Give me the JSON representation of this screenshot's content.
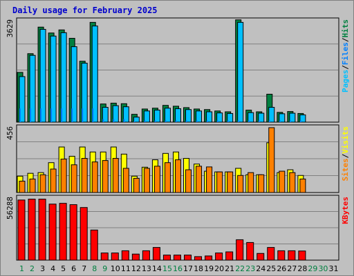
{
  "title": "Daily usage for February 2025",
  "colors": {
    "background": "#c0c0c0",
    "panel": "#c0c0c0",
    "gridline": "#808080",
    "hits": "#008040",
    "files": "#00c0ff",
    "pages": "#0080ff",
    "visits": "#ffff00",
    "sites": "#ff8000",
    "kbytes": "#ff0000",
    "weekday_label": "#008040",
    "weekend_label": "#000000"
  },
  "chart_data": [
    {
      "type": "bar",
      "panel": "top",
      "ymax_label": "3629",
      "ylim": [
        0,
        3629
      ],
      "legend_placement": "right",
      "legend": [
        "Pages",
        "Files",
        "Hits"
      ],
      "categories": [
        "1",
        "2",
        "3",
        "4",
        "5",
        "6",
        "7",
        "8",
        "9",
        "10",
        "11",
        "12",
        "13",
        "14",
        "15",
        "16",
        "17",
        "18",
        "19",
        "20",
        "21",
        "22",
        "23",
        "24",
        "25",
        "26",
        "27",
        "28",
        "29",
        "30",
        "31"
      ],
      "series": [
        {
          "name": "Hits",
          "values": [
            1780,
            2450,
            3400,
            3190,
            3300,
            3000,
            2180,
            3570,
            650,
            680,
            660,
            280,
            470,
            500,
            600,
            570,
            520,
            470,
            450,
            400,
            370,
            3660,
            430,
            370,
            1000,
            350,
            380,
            310,
            null,
            null,
            null
          ]
        },
        {
          "name": "Files",
          "values": [
            1630,
            2390,
            3320,
            3080,
            3200,
            2700,
            2110,
            3440,
            530,
            590,
            550,
            180,
            400,
            430,
            500,
            480,
            450,
            400,
            370,
            330,
            310,
            3570,
            340,
            320,
            530,
            300,
            320,
            260,
            null,
            null,
            null
          ]
        },
        {
          "name": "Pages",
          "values": [
            490,
            490,
            490,
            490,
            490,
            490,
            490,
            490,
            110,
            110,
            110,
            30,
            60,
            60,
            60,
            60,
            60,
            60,
            60,
            60,
            60,
            60,
            60,
            60,
            60,
            60,
            60,
            60,
            null,
            null,
            null
          ]
        }
      ]
    },
    {
      "type": "bar",
      "panel": "middle",
      "ymax_label": "456",
      "ylim": [
        0,
        456
      ],
      "legend_placement": "right",
      "legend": [
        "Sites",
        "Visits"
      ],
      "categories": [
        "1",
        "2",
        "3",
        "4",
        "5",
        "6",
        "7",
        "8",
        "9",
        "10",
        "11",
        "12",
        "13",
        "14",
        "15",
        "16",
        "17",
        "18",
        "19",
        "20",
        "21",
        "22",
        "23",
        "24",
        "25",
        "26",
        "27",
        "28",
        "29",
        "30",
        "31"
      ],
      "series": [
        {
          "name": "Visits",
          "values": [
            115,
            135,
            140,
            210,
            320,
            255,
            320,
            285,
            285,
            320,
            270,
            115,
            178,
            230,
            275,
            285,
            240,
            200,
            150,
            145,
            145,
            170,
            125,
            125,
            350,
            140,
            160,
            120,
            null,
            null,
            null
          ]
        },
        {
          "name": "Sites",
          "values": [
            80,
            95,
            125,
            165,
            235,
            195,
            240,
            215,
            225,
            240,
            170,
            100,
            170,
            185,
            210,
            230,
            160,
            185,
            180,
            145,
            145,
            120,
            140,
            125,
            456,
            150,
            140,
            95,
            null,
            null,
            null
          ]
        }
      ]
    },
    {
      "type": "bar",
      "panel": "bottom",
      "ymax_label": "56288",
      "ylim": [
        0,
        56288
      ],
      "legend_placement": "right",
      "legend": [
        "KBytes"
      ],
      "categories": [
        "1",
        "2",
        "3",
        "4",
        "5",
        "6",
        "7",
        "8",
        "9",
        "10",
        "11",
        "12",
        "13",
        "14",
        "15",
        "16",
        "17",
        "18",
        "19",
        "20",
        "21",
        "22",
        "23",
        "24",
        "25",
        "26",
        "27",
        "28",
        "29",
        "30",
        "31"
      ],
      "series": [
        {
          "name": "KBytes",
          "values": [
            54500,
            55300,
            55300,
            50800,
            51500,
            50300,
            47700,
            27300,
            6500,
            6500,
            8500,
            5500,
            8500,
            11500,
            4600,
            4600,
            4600,
            3200,
            3800,
            6500,
            7500,
            18500,
            16000,
            6100,
            11500,
            8500,
            8500,
            8300,
            null,
            null,
            null
          ]
        }
      ]
    }
  ],
  "day_labels": [
    "1",
    "2",
    "3",
    "4",
    "5",
    "6",
    "7",
    "8",
    "9",
    "10",
    "11",
    "12",
    "13",
    "14",
    "15",
    "16",
    "17",
    "18",
    "19",
    "20",
    "21",
    "22",
    "23",
    "24",
    "25",
    "26",
    "27",
    "28",
    "29",
    "30",
    "31"
  ],
  "weekend_days": [
    1,
    2,
    8,
    9,
    15,
    16,
    22,
    23,
    29,
    30
  ]
}
